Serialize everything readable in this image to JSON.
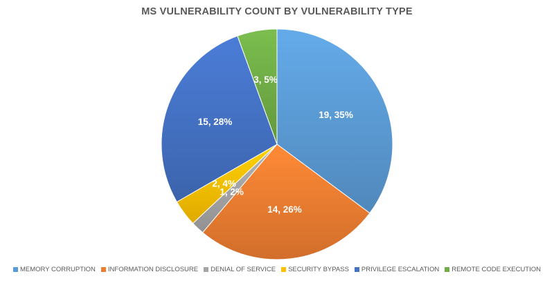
{
  "chart_data": {
    "type": "pie",
    "title": "MS VULNERABILITY COUNT BY VULNERABILITY TYPE",
    "legend_position": "bottom",
    "slices": [
      {
        "name": "MEMORY CORRUPTION",
        "value": 19,
        "percent": 35,
        "label": "19, 35%",
        "color": "#5B9BD5"
      },
      {
        "name": "INFORMATION DISCLOSURE",
        "value": 14,
        "percent": 26,
        "label": "14, 26%",
        "color": "#ED7D31"
      },
      {
        "name": "DENIAL OF SERVICE",
        "value": 1,
        "percent": 2,
        "label": "1, 2%",
        "color": "#A5A5A5"
      },
      {
        "name": "SECURITY BYPASS",
        "value": 2,
        "percent": 4,
        "label": "2, 4%",
        "color": "#FFC000"
      },
      {
        "name": "PRIVILEGE ESCALATION",
        "value": 15,
        "percent": 28,
        "label": "15, 28%",
        "color": "#4472C4"
      },
      {
        "name": "REMOTE CODE EXECUTION",
        "value": 3,
        "percent": 5,
        "label": "3, 5%",
        "color": "#70AD47"
      }
    ]
  }
}
